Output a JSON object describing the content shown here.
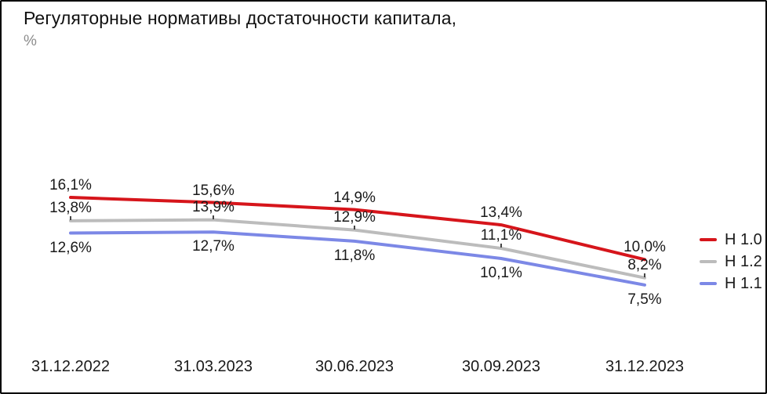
{
  "header": {
    "title": "Регуляторные нормативы достаточности капитала,",
    "subtitle": "%"
  },
  "chart_data": {
    "type": "line",
    "title": "Регуляторные нормативы достаточности капитала,",
    "ylabel": "%",
    "xlabel": "",
    "categories": [
      "31.12.2022",
      "31.03.2023",
      "30.06.2023",
      "30.09.2023",
      "31.12.2023"
    ],
    "series": [
      {
        "name": "Н 1.0",
        "color": "#d6151b",
        "values": [
          16.1,
          15.6,
          14.9,
          13.4,
          10.0
        ],
        "labels": [
          "16,1%",
          "15,6%",
          "14,9%",
          "13,4%",
          "10,0%"
        ],
        "label_position": "above"
      },
      {
        "name": "Н 1.2",
        "color": "#bcbcbc",
        "values": [
          13.8,
          13.9,
          12.9,
          11.1,
          8.2
        ],
        "labels": [
          "13,8%",
          "13,9%",
          "12,9%",
          "11,1%",
          "8,2%"
        ],
        "label_position": "above-tick"
      },
      {
        "name": "Н 1.1",
        "color": "#7c88e6",
        "values": [
          12.6,
          12.7,
          11.8,
          10.1,
          7.5
        ],
        "labels": [
          "12,6%",
          "12,7%",
          "11,8%",
          "10,1%",
          "7,5%"
        ],
        "label_position": "below"
      }
    ],
    "legend": [
      "Н 1.0",
      "Н 1.2",
      "Н 1.1"
    ],
    "legend_position": "right",
    "grid": false,
    "ylim": [
      7.0,
      16.5
    ],
    "label_decimal_separator": ","
  },
  "colors": {
    "border": "#000000",
    "background": "#ffffff",
    "title_text": "#111111",
    "subtitle_text": "#8c8c8c",
    "label_text": "#1a1a1a",
    "tick": "#444444"
  }
}
